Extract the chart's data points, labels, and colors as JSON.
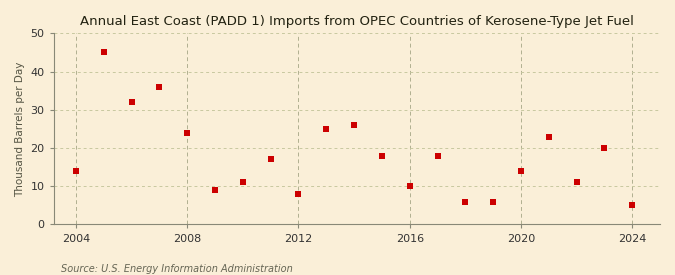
{
  "title": "Annual East Coast (PADD 1) Imports from OPEC Countries of Kerosene-Type Jet Fuel",
  "ylabel": "Thousand Barrels per Day",
  "source": "Source: U.S. Energy Information Administration",
  "background_color": "#faefd8",
  "marker_color": "#cc0000",
  "grid_color_h": "#c8c8a0",
  "grid_color_v": "#b0b090",
  "years": [
    2004,
    2005,
    2006,
    2007,
    2008,
    2009,
    2010,
    2011,
    2012,
    2013,
    2014,
    2015,
    2016,
    2017,
    2018,
    2019,
    2020,
    2021,
    2022,
    2023,
    2024
  ],
  "values": [
    14,
    45,
    32,
    36,
    24,
    9,
    11,
    17,
    8,
    25,
    26,
    18,
    10,
    18,
    6,
    6,
    14,
    23,
    11,
    20,
    5
  ],
  "xlim": [
    2003.2,
    2025.0
  ],
  "ylim": [
    0,
    50
  ],
  "yticks": [
    0,
    10,
    20,
    30,
    40,
    50
  ],
  "xticks": [
    2004,
    2008,
    2012,
    2016,
    2020,
    2024
  ],
  "title_fontsize": 9.5,
  "label_fontsize": 7.5,
  "tick_fontsize": 8,
  "source_fontsize": 7,
  "marker_size": 18
}
